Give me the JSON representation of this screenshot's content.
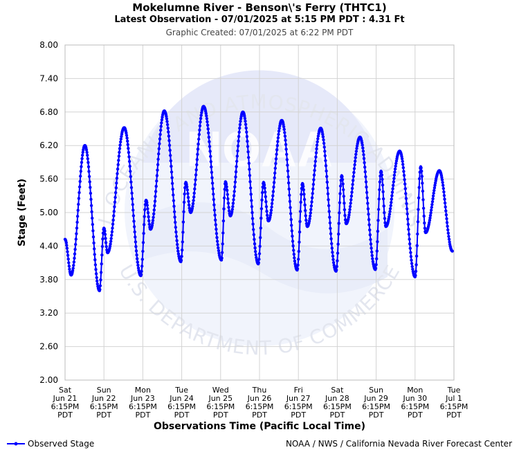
{
  "header": {
    "title": "Mokelumne River - Benson\\'s Ferry (THTC1)",
    "subtitle": "Latest Observation - 07/01/2025 at 5:15 PM PDT : 4.31 Ft",
    "created": "Graphic Created: 07/01/2025 at 6:22 PM PDT"
  },
  "watermark": {
    "top_text": "NATIONAL OCEANIC AND ATMOSPHERIC ADMINISTRATION",
    "bottom_text": "U.S. DEPARTMENT OF COMMERCE",
    "logo_text": "NOAA"
  },
  "footer": {
    "legend_label": "Observed Stage",
    "credit": "NOAA / NWS / California Nevada River Forecast Center"
  },
  "colors": {
    "series": "#0000ff",
    "grid": "#d3d3d3",
    "watermark": "#e8ecfa"
  },
  "chart_data": {
    "type": "line",
    "xlabel": "Observations Time (Pacific Local Time)",
    "ylabel": "Stage (Feet)",
    "ylim": [
      2.0,
      8.0
    ],
    "yticks": [
      "2.00",
      "2.60",
      "3.20",
      "3.80",
      "4.40",
      "5.00",
      "5.60",
      "6.20",
      "6.80",
      "7.40",
      "8.00"
    ],
    "xticks": [
      [
        "Sat",
        "Jun 21",
        "6:15PM",
        "PDT"
      ],
      [
        "Sun",
        "Jun 22",
        "6:15PM",
        "PDT"
      ],
      [
        "Mon",
        "Jun 23",
        "6:15PM",
        "PDT"
      ],
      [
        "Tue",
        "Jun 24",
        "6:15PM",
        "PDT"
      ],
      [
        "Wed",
        "Jun 25",
        "6:15PM",
        "PDT"
      ],
      [
        "Thu",
        "Jun 26",
        "6:15PM",
        "PDT"
      ],
      [
        "Fri",
        "Jun 27",
        "6:15PM",
        "PDT"
      ],
      [
        "Sat",
        "Jun 28",
        "6:15PM",
        "PDT"
      ],
      [
        "Sun",
        "Jun 29",
        "6:15PM",
        "PDT"
      ],
      [
        "Mon",
        "Jun 30",
        "6:15PM",
        "PDT"
      ],
      [
        "Tue",
        "Jul 1",
        "6:15PM",
        "PDT"
      ]
    ],
    "xrange": [
      "06/21/2025 6:15 PM",
      "07/01/2025 6:15 PM"
    ],
    "grid": true,
    "legend_position": "bottom-left",
    "series": [
      {
        "name": "Observed Stage",
        "points": [
          [
            "06/21/2025 6:15 PM",
            4.52
          ],
          [
            "06/21/2025 10:00 PM",
            3.88
          ],
          [
            "06/22/2025 6:30 AM",
            6.2
          ],
          [
            "06/22/2025 3:30 PM",
            3.6
          ],
          [
            "06/22/2025 6:15 PM",
            4.72
          ],
          [
            "06/22/2025 8:30 PM",
            4.28
          ],
          [
            "06/23/2025 6:45 AM",
            6.52
          ],
          [
            "06/23/2025 5:00 PM",
            3.87
          ],
          [
            "06/23/2025 8:15 PM",
            5.22
          ],
          [
            "06/23/2025 11:00 PM",
            4.7
          ],
          [
            "06/24/2025 7:30 AM",
            6.82
          ],
          [
            "06/24/2025 5:45 PM",
            4.12
          ],
          [
            "06/24/2025 8:45 PM",
            5.54
          ],
          [
            "06/24/2025 11:45 PM",
            5.0
          ],
          [
            "06/25/2025 7:45 AM",
            6.9
          ],
          [
            "06/25/2025 6:45 PM",
            4.15
          ],
          [
            "06/25/2025 9:15 PM",
            5.55
          ],
          [
            "06/26/2025 12:15 AM",
            4.94
          ],
          [
            "06/26/2025 8:00 AM",
            6.8
          ],
          [
            "06/26/2025 5:30 PM",
            4.08
          ],
          [
            "06/26/2025 8:45 PM",
            5.54
          ],
          [
            "06/26/2025 11:45 PM",
            4.85
          ],
          [
            "06/27/2025 8:00 AM",
            6.65
          ],
          [
            "06/27/2025 5:30 PM",
            3.97
          ],
          [
            "06/27/2025 8:45 PM",
            5.52
          ],
          [
            "06/27/2025 11:45 PM",
            4.75
          ],
          [
            "06/28/2025 8:00 AM",
            6.51
          ],
          [
            "06/28/2025 5:30 PM",
            3.95
          ],
          [
            "06/28/2025 9:00 PM",
            5.66
          ],
          [
            "06/28/2025 11:45 PM",
            4.8
          ],
          [
            "06/29/2025 8:15 AM",
            6.35
          ],
          [
            "06/29/2025 5:45 PM",
            3.98
          ],
          [
            "06/29/2025 9:15 PM",
            5.74
          ],
          [
            "06/30/2025 12:15 AM",
            4.75
          ],
          [
            "06/30/2025 8:45 AM",
            6.1
          ],
          [
            "06/30/2025 6:15 PM",
            3.85
          ],
          [
            "06/30/2025 9:45 PM",
            5.82
          ],
          [
            "07/01/2025 12:45 AM",
            4.64
          ],
          [
            "07/01/2025 9:15 AM",
            5.75
          ],
          [
            "07/01/2025 5:15 PM",
            4.31
          ]
        ]
      }
    ]
  }
}
